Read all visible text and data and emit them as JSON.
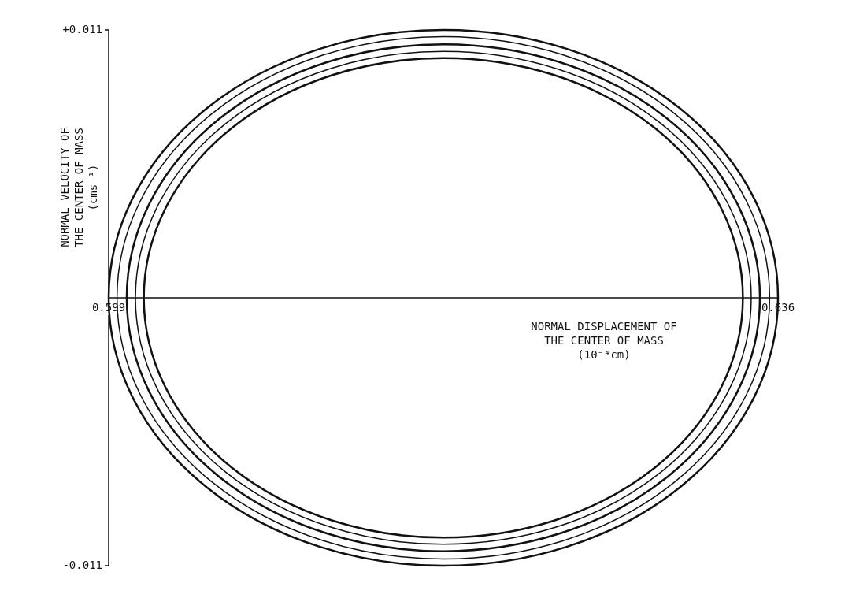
{
  "chart_data": {
    "type": "line",
    "xlabel": "NORMAL DISPLACEMENT OF THE CENTER OF MASS (10⁻⁴cm)",
    "ylabel": "NORMAL VELOCITY OF THE CENTER OF MASS (cms⁻¹)",
    "xlim": [
      0.599,
      0.636
    ],
    "ylim": [
      -0.011,
      0.011
    ],
    "xticks": [
      0.599,
      0.636
    ],
    "yticks": [
      {
        "value": 0.011,
        "label": "+0.011"
      },
      {
        "value": -0.011,
        "label": "-0.011"
      }
    ],
    "legend": false
  }
}
